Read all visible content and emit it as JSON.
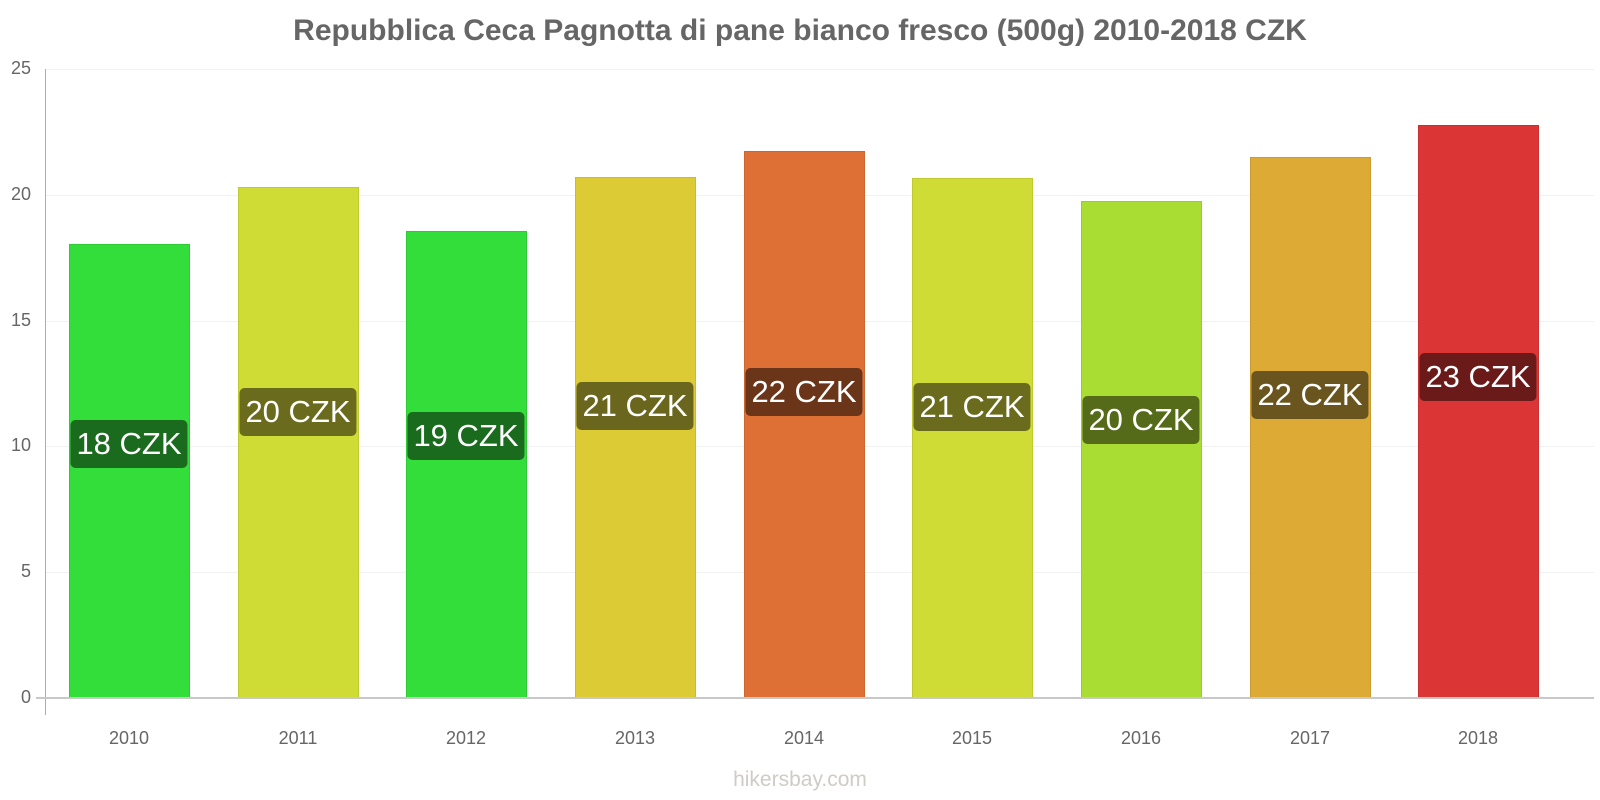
{
  "chart_data": {
    "type": "bar",
    "title": "Repubblica Ceca Pagnotta di pane bianco fresco (500g) 2010-2018 CZK",
    "xlabel": "",
    "ylabel": "",
    "ylim": [
      0,
      25
    ],
    "yticks": [
      0,
      5,
      10,
      15,
      20,
      25
    ],
    "grid": true,
    "legend": null,
    "categories": [
      "2010",
      "2011",
      "2012",
      "2013",
      "2014",
      "2015",
      "2016",
      "2017",
      "2018"
    ],
    "values": [
      18.05,
      20.31,
      18.56,
      20.71,
      21.74,
      20.67,
      19.75,
      21.5,
      22.77
    ],
    "data_labels": [
      "18 CZK",
      "20 CZK",
      "19 CZK",
      "21 CZK",
      "22 CZK",
      "21 CZK",
      "20 CZK",
      "22 CZK",
      "23 CZK"
    ],
    "bar_colors": [
      "#33dd3a",
      "#cfdc35",
      "#33dd3a",
      "#dccb35",
      "#de7036",
      "#cfdc35",
      "#aadd34",
      "#dcaa35",
      "#dc3535"
    ],
    "label_colors": [
      "#1a6b1e",
      "#6b6b1e",
      "#1a6b1e",
      "#6b661e",
      "#6b3519",
      "#6b6b1e",
      "#556b1a",
      "#6b551e",
      "#6b1a1a"
    ],
    "unit": "CZK"
  },
  "title": "Repubblica Ceca Pagnotta di pane bianco fresco (500g) 2010-2018 CZK",
  "y_axis": {
    "ticks": [
      "0",
      "5",
      "10",
      "15",
      "20",
      "25"
    ]
  },
  "x_axis": {
    "ticks": [
      "2010",
      "2011",
      "2012",
      "2013",
      "2014",
      "2015",
      "2016",
      "2017",
      "2018"
    ]
  },
  "watermark": "hikersbay.com"
}
